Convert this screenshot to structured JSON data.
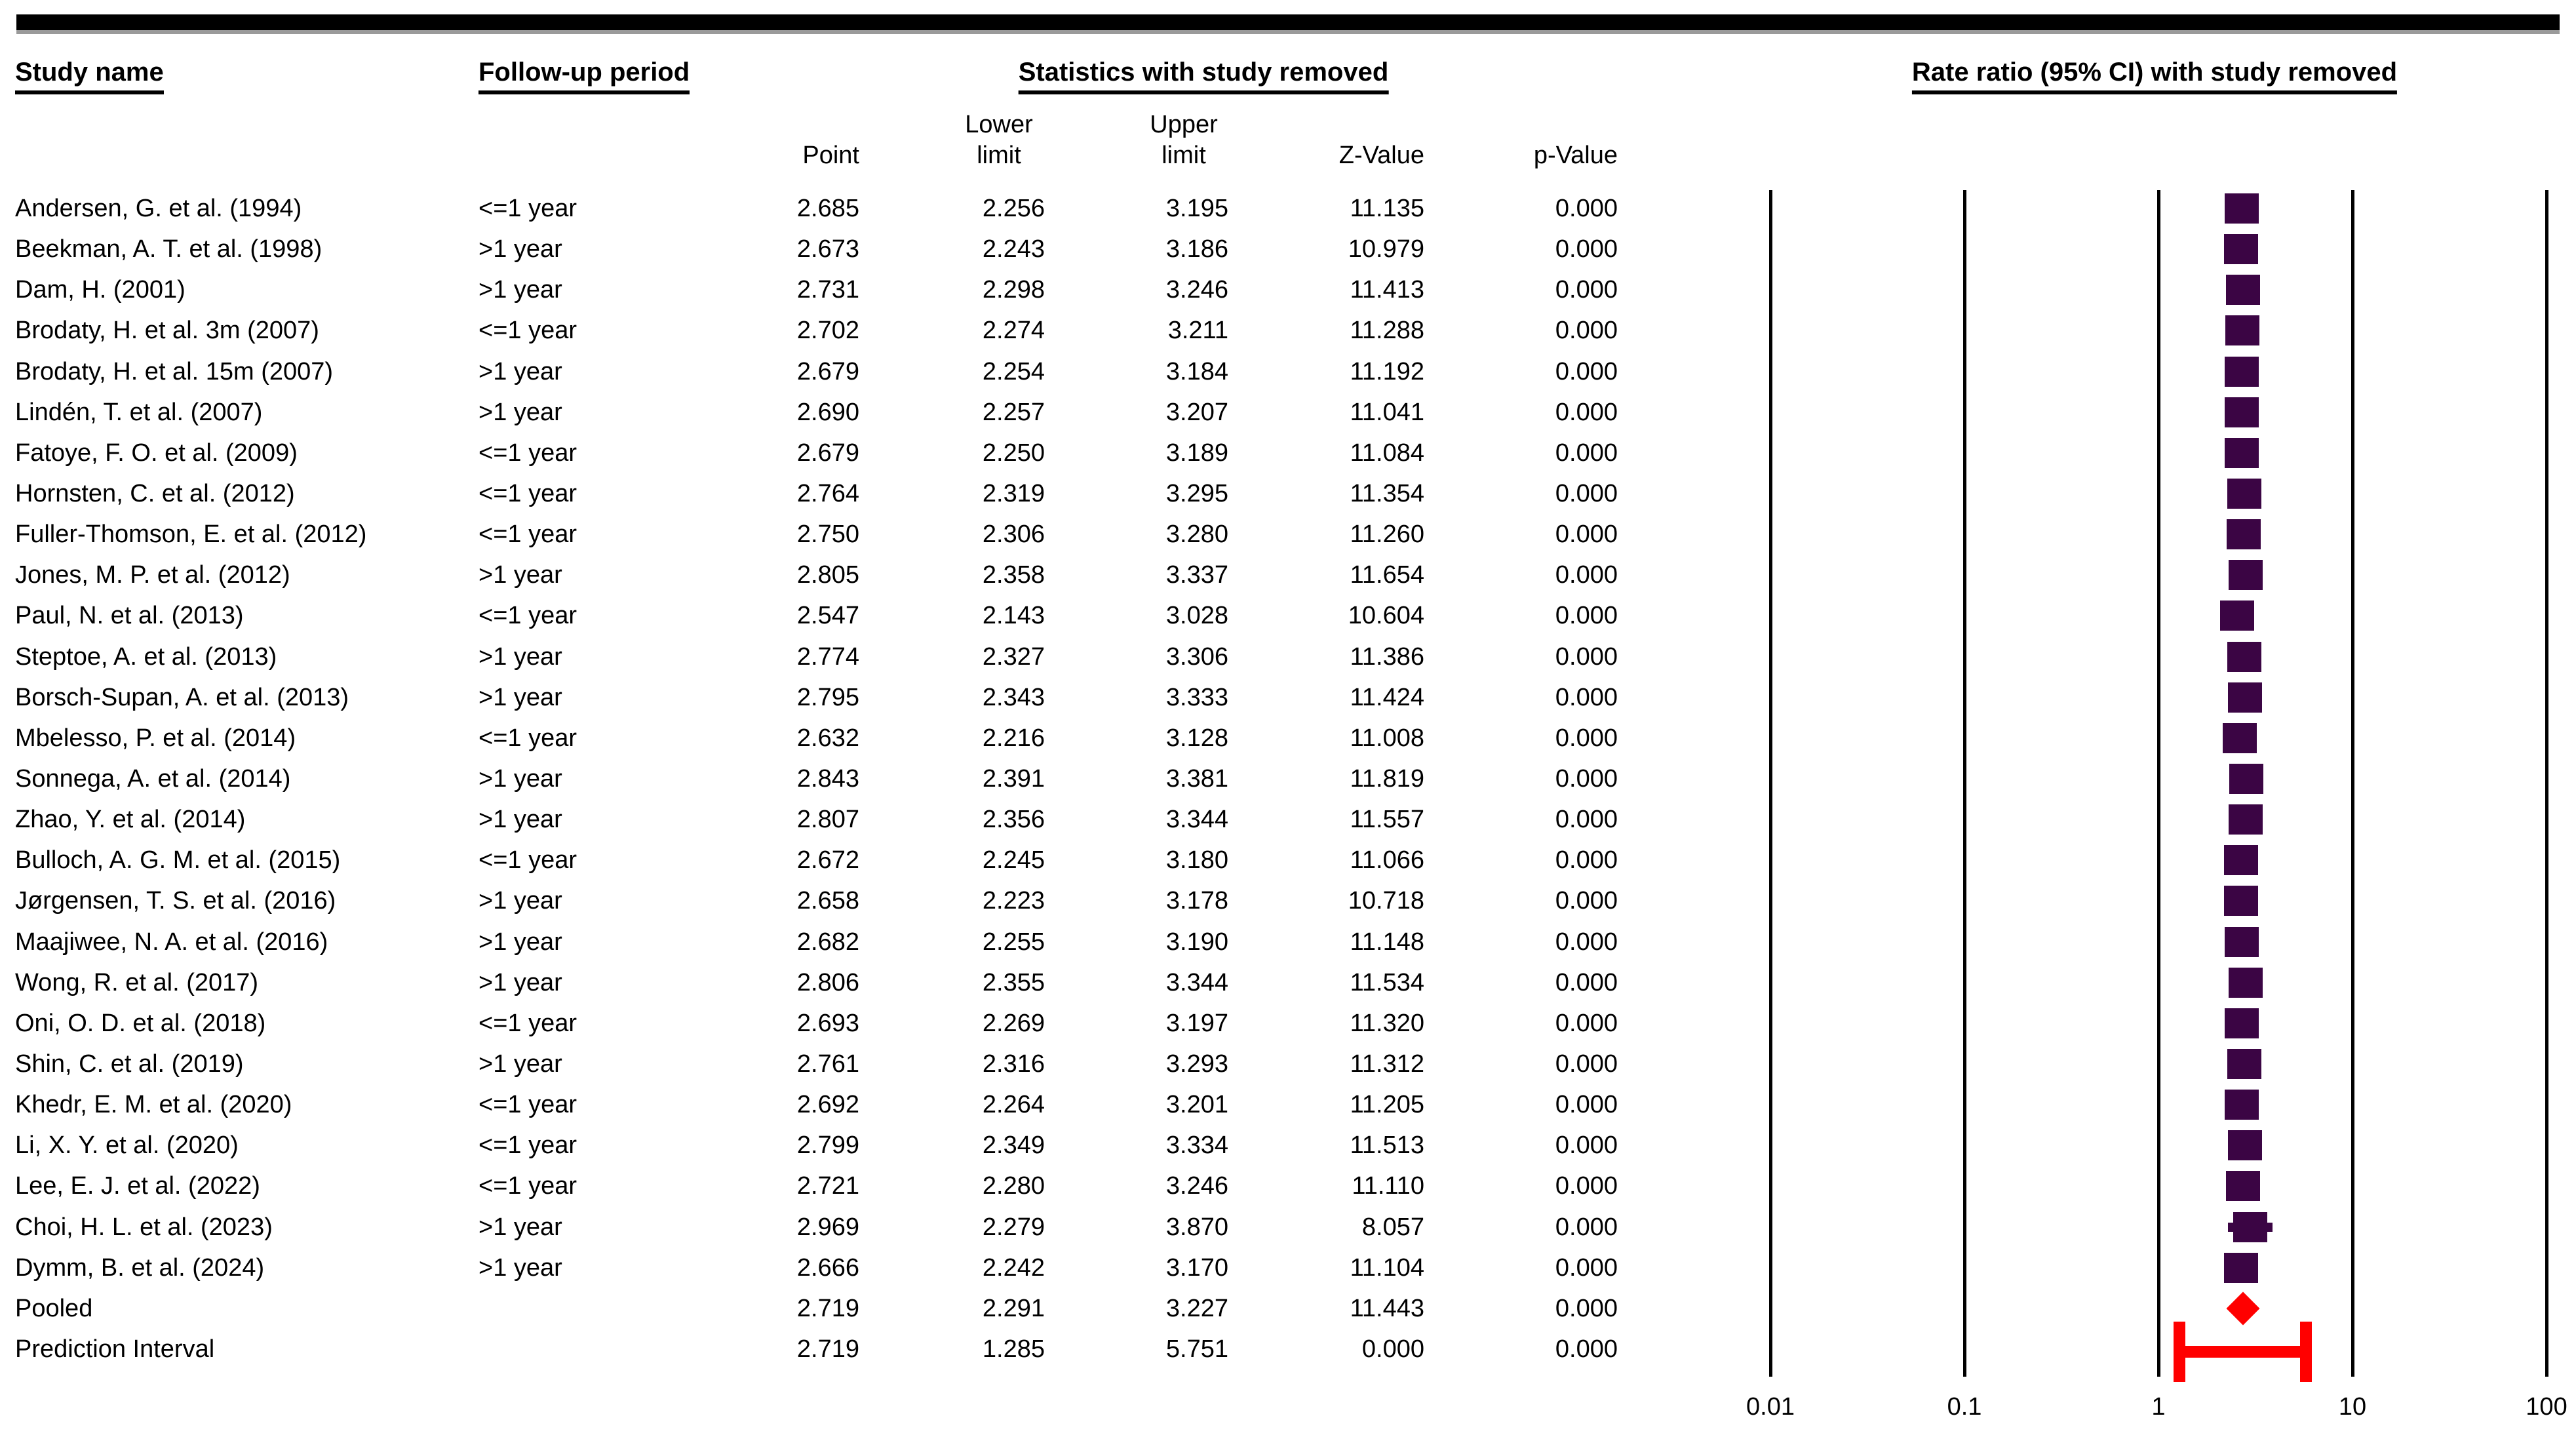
{
  "header": {
    "study": "Study name",
    "followup": "Follow-up period",
    "stats": "Statistics with study removed",
    "plot": "Rate ratio (95% CI) with study removed"
  },
  "subheader": {
    "point": "Point",
    "lower": "Lower\nlimit",
    "upper": "Upper\nlimit",
    "z": "Z-Value",
    "p": "p-Value"
  },
  "chart_data": {
    "type": "forest",
    "title": "Rate ratio (95% CI) with study removed",
    "x_axis": {
      "scale": "log10",
      "tick_labels": [
        "0.01",
        "0.1",
        "1",
        "10",
        "100"
      ],
      "tick_values": [
        0.01,
        0.1,
        1,
        10,
        100
      ],
      "range": [
        0.01,
        100
      ]
    },
    "colors": {
      "study_marker": "#3B0544",
      "pooled_marker": "#FF0000",
      "axis_line": "#000000"
    },
    "columns": [
      "Point",
      "Lower limit",
      "Upper limit",
      "Z-Value",
      "p-Value"
    ],
    "rows": [
      {
        "study": "Andersen, G. et al. (1994)",
        "followup": "<=1 year",
        "point": "2.685",
        "lower": "2.256",
        "upper": "3.195",
        "z": "11.135",
        "p": "0.000",
        "marker": "square"
      },
      {
        "study": "Beekman, A. T. et al. (1998)",
        "followup": ">1 year",
        "point": "2.673",
        "lower": "2.243",
        "upper": "3.186",
        "z": "10.979",
        "p": "0.000",
        "marker": "square"
      },
      {
        "study": "Dam, H. (2001)",
        "followup": ">1 year",
        "point": "2.731",
        "lower": "2.298",
        "upper": "3.246",
        "z": "11.413",
        "p": "0.000",
        "marker": "square"
      },
      {
        "study": "Brodaty, H. et al. 3m (2007)",
        "followup": "<=1 year",
        "point": "2.702",
        "lower": "2.274",
        "upper": "3.211",
        "z": "11.288",
        "p": "0.000",
        "marker": "square"
      },
      {
        "study": "Brodaty, H. et al. 15m (2007)",
        "followup": ">1 year",
        "point": "2.679",
        "lower": "2.254",
        "upper": "3.184",
        "z": "11.192",
        "p": "0.000",
        "marker": "square"
      },
      {
        "study": "Lindén, T. et al. (2007)",
        "followup": ">1 year",
        "point": "2.690",
        "lower": "2.257",
        "upper": "3.207",
        "z": "11.041",
        "p": "0.000",
        "marker": "square"
      },
      {
        "study": "Fatoye, F. O. et al. (2009)",
        "followup": "<=1 year",
        "point": "2.679",
        "lower": "2.250",
        "upper": "3.189",
        "z": "11.084",
        "p": "0.000",
        "marker": "square"
      },
      {
        "study": "Hornsten, C. et al. (2012)",
        "followup": "<=1 year",
        "point": "2.764",
        "lower": "2.319",
        "upper": "3.295",
        "z": "11.354",
        "p": "0.000",
        "marker": "square"
      },
      {
        "study": "Fuller-Thomson, E. et al. (2012)",
        "followup": "<=1 year",
        "point": "2.750",
        "lower": "2.306",
        "upper": "3.280",
        "z": "11.260",
        "p": "0.000",
        "marker": "square"
      },
      {
        "study": "Jones, M. P. et al. (2012)",
        "followup": ">1 year",
        "point": "2.805",
        "lower": "2.358",
        "upper": "3.337",
        "z": "11.654",
        "p": "0.000",
        "marker": "square"
      },
      {
        "study": "Paul, N. et al. (2013)",
        "followup": "<=1 year",
        "point": "2.547",
        "lower": "2.143",
        "upper": "3.028",
        "z": "10.604",
        "p": "0.000",
        "marker": "square"
      },
      {
        "study": "Steptoe, A. et al. (2013)",
        "followup": ">1 year",
        "point": "2.774",
        "lower": "2.327",
        "upper": "3.306",
        "z": "11.386",
        "p": "0.000",
        "marker": "square"
      },
      {
        "study": "Borsch-Supan, A. et al. (2013)",
        "followup": ">1 year",
        "point": "2.795",
        "lower": "2.343",
        "upper": "3.333",
        "z": "11.424",
        "p": "0.000",
        "marker": "square"
      },
      {
        "study": "Mbelesso, P. et al. (2014)",
        "followup": "<=1 year",
        "point": "2.632",
        "lower": "2.216",
        "upper": "3.128",
        "z": "11.008",
        "p": "0.000",
        "marker": "square"
      },
      {
        "study": "Sonnega, A. et al. (2014)",
        "followup": ">1 year",
        "point": "2.843",
        "lower": "2.391",
        "upper": "3.381",
        "z": "11.819",
        "p": "0.000",
        "marker": "square"
      },
      {
        "study": "Zhao, Y. et al. (2014)",
        "followup": ">1 year",
        "point": "2.807",
        "lower": "2.356",
        "upper": "3.344",
        "z": "11.557",
        "p": "0.000",
        "marker": "square"
      },
      {
        "study": "Bulloch, A. G. M. et al. (2015)",
        "followup": "<=1 year",
        "point": "2.672",
        "lower": "2.245",
        "upper": "3.180",
        "z": "11.066",
        "p": "0.000",
        "marker": "square"
      },
      {
        "study": "Jørgensen, T. S. et al. (2016)",
        "followup": ">1 year",
        "point": "2.658",
        "lower": "2.223",
        "upper": "3.178",
        "z": "10.718",
        "p": "0.000",
        "marker": "square"
      },
      {
        "study": "Maajiwee, N. A. et al. (2016)",
        "followup": ">1 year",
        "point": "2.682",
        "lower": "2.255",
        "upper": "3.190",
        "z": "11.148",
        "p": "0.000",
        "marker": "square"
      },
      {
        "study": "Wong, R. et al. (2017)",
        "followup": ">1 year",
        "point": "2.806",
        "lower": "2.355",
        "upper": "3.344",
        "z": "11.534",
        "p": "0.000",
        "marker": "square"
      },
      {
        "study": "Oni, O. D. et al. (2018)",
        "followup": "<=1 year",
        "point": "2.693",
        "lower": "2.269",
        "upper": "3.197",
        "z": "11.320",
        "p": "0.000",
        "marker": "square"
      },
      {
        "study": "Shin, C. et al. (2019)",
        "followup": ">1 year",
        "point": "2.761",
        "lower": "2.316",
        "upper": "3.293",
        "z": "11.312",
        "p": "0.000",
        "marker": "square"
      },
      {
        "study": "Khedr, E. M. et al. (2020)",
        "followup": "<=1 year",
        "point": "2.692",
        "lower": "2.264",
        "upper": "3.201",
        "z": "11.205",
        "p": "0.000",
        "marker": "square"
      },
      {
        "study": "Li, X. Y. et al. (2020)",
        "followup": "<=1 year",
        "point": "2.799",
        "lower": "2.349",
        "upper": "3.334",
        "z": "11.513",
        "p": "0.000",
        "marker": "square"
      },
      {
        "study": "Lee, E. J. et al. (2022)",
        "followup": "<=1 year",
        "point": "2.721",
        "lower": "2.280",
        "upper": "3.246",
        "z": "11.110",
        "p": "0.000",
        "marker": "square"
      },
      {
        "study": "Choi, H. L. et al. (2023)",
        "followup": ">1 year",
        "point": "2.969",
        "lower": "2.279",
        "upper": "3.870",
        "z": "8.057",
        "p": "0.000",
        "marker": "square"
      },
      {
        "study": "Dymm, B. et al. (2024)",
        "followup": ">1 year",
        "point": "2.666",
        "lower": "2.242",
        "upper": "3.170",
        "z": "11.104",
        "p": "0.000",
        "marker": "square"
      },
      {
        "study": "Pooled",
        "followup": "",
        "point": "2.719",
        "lower": "2.291",
        "upper": "3.227",
        "z": "11.443",
        "p": "0.000",
        "marker": "diamond"
      },
      {
        "study": "Prediction Interval",
        "followup": "",
        "point": "2.719",
        "lower": "1.285",
        "upper": "5.751",
        "z": "0.000",
        "p": "0.000",
        "marker": "interval"
      }
    ]
  }
}
